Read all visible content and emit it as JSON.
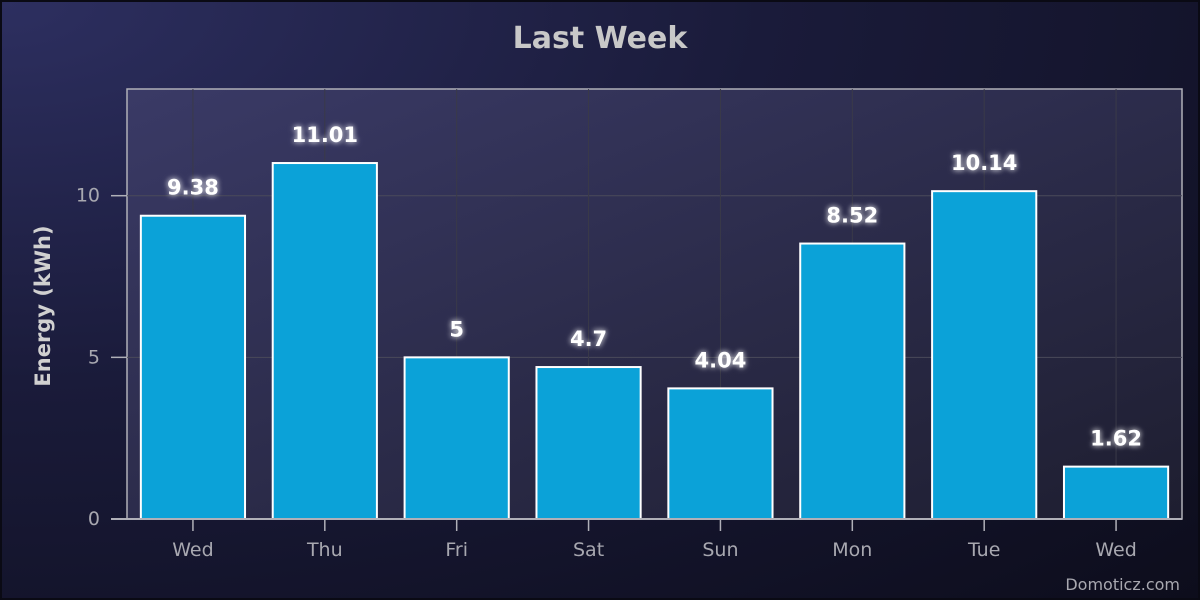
{
  "chart_data": {
    "type": "bar",
    "title": "Last Week",
    "xlabel": "",
    "ylabel": "Energy (kWh)",
    "categories": [
      "Wed",
      "Thu",
      "Fri",
      "Sat",
      "Sun",
      "Mon",
      "Tue",
      "Wed"
    ],
    "values": [
      9.38,
      11.01,
      5,
      4.7,
      4.04,
      8.52,
      10.14,
      1.62
    ],
    "value_labels": [
      "9.38",
      "11.01",
      "5",
      "4.7",
      "4.04",
      "8.52",
      "10.14",
      "1.62"
    ],
    "y_ticks": [
      "0",
      "5",
      "10"
    ],
    "ylim": [
      0,
      13.3
    ],
    "grid": true,
    "legend": "none",
    "bar_color": "#0ba2d8"
  },
  "credit": "Domoticz.com"
}
